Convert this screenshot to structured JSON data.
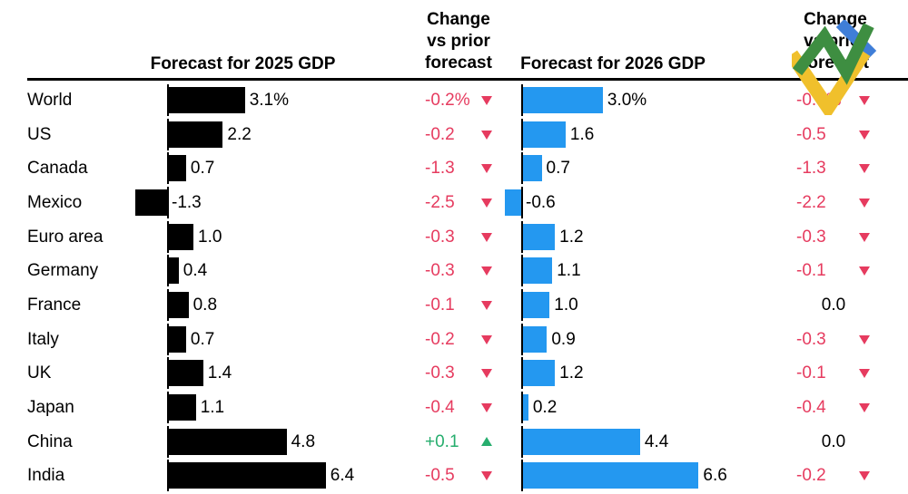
{
  "header": {
    "col_2025": "Forecast for 2025 GDP",
    "col_2026": "Forecast for 2026 GDP",
    "change_lines": [
      "Change",
      "vs prior",
      "forecast"
    ]
  },
  "colors": {
    "bar_2025": "#000000",
    "bar_2026": "#2498f0",
    "negative": "#e63b5f",
    "positive": "#27ae6e",
    "neutral": "#000000",
    "rule": "#000000",
    "logo_green": "#3e8e41",
    "logo_blue": "#3f7ed8",
    "logo_yellow": "#f0c02c"
  },
  "chart_data": {
    "type": "bar",
    "orientation": "horizontal",
    "title": "",
    "unit": "%",
    "legend_position": "none",
    "grid": false,
    "categories": [
      "World",
      "US",
      "Canada",
      "Mexico",
      "Euro area",
      "Germany",
      "France",
      "Italy",
      "UK",
      "Japan",
      "China",
      "India"
    ],
    "series": [
      {
        "name": "Forecast for 2025 GDP",
        "role": "bar",
        "color": "#000000",
        "values": [
          3.1,
          2.2,
          0.7,
          -1.3,
          1.0,
          0.4,
          0.8,
          0.7,
          1.4,
          1.1,
          4.8,
          6.4
        ],
        "labels": [
          "3.1%",
          "2.2",
          "0.7",
          "-1.3",
          "1.0",
          "0.4",
          "0.8",
          "0.7",
          "1.4",
          "1.1",
          "4.8",
          "6.4"
        ]
      },
      {
        "name": "Change vs prior forecast (2025)",
        "role": "value-with-arrow",
        "values": [
          -0.2,
          -0.2,
          -1.3,
          -2.5,
          -0.3,
          -0.3,
          -0.1,
          -0.2,
          -0.3,
          -0.4,
          0.1,
          -0.5
        ],
        "labels": [
          "-0.2%",
          "-0.2",
          "-1.3",
          "-2.5",
          "-0.3",
          "-0.3",
          "-0.1",
          "-0.2",
          "-0.3",
          "-0.4",
          "+0.1",
          "-0.5"
        ],
        "directions": [
          "down",
          "down",
          "down",
          "down",
          "down",
          "down",
          "down",
          "down",
          "down",
          "down",
          "up",
          "down"
        ]
      },
      {
        "name": "Forecast for 2026 GDP",
        "role": "bar",
        "color": "#2498f0",
        "values": [
          3.0,
          1.6,
          0.7,
          -0.6,
          1.2,
          1.1,
          1.0,
          0.9,
          1.2,
          0.2,
          4.4,
          6.6
        ],
        "labels": [
          "3.0%",
          "1.6",
          "0.7",
          "-0.6",
          "1.2",
          "1.1",
          "1.0",
          "0.9",
          "1.2",
          "0.2",
          "4.4",
          "6.6"
        ]
      },
      {
        "name": "Change vs prior forecast (2026)",
        "role": "value-with-arrow",
        "values": [
          -0.3,
          -0.5,
          -1.3,
          -2.2,
          -0.3,
          -0.1,
          0.0,
          -0.3,
          -0.1,
          -0.4,
          0.0,
          -0.2
        ],
        "labels": [
          "-0.3%",
          "-0.5",
          "-1.3",
          "-2.2",
          "-0.3",
          "-0.1",
          "0.0",
          "-0.3",
          "-0.1",
          "-0.4",
          "0.0",
          "-0.2"
        ],
        "directions": [
          "down",
          "down",
          "down",
          "down",
          "down",
          "down",
          "none",
          "down",
          "down",
          "down",
          "none",
          "down"
        ]
      }
    ]
  }
}
